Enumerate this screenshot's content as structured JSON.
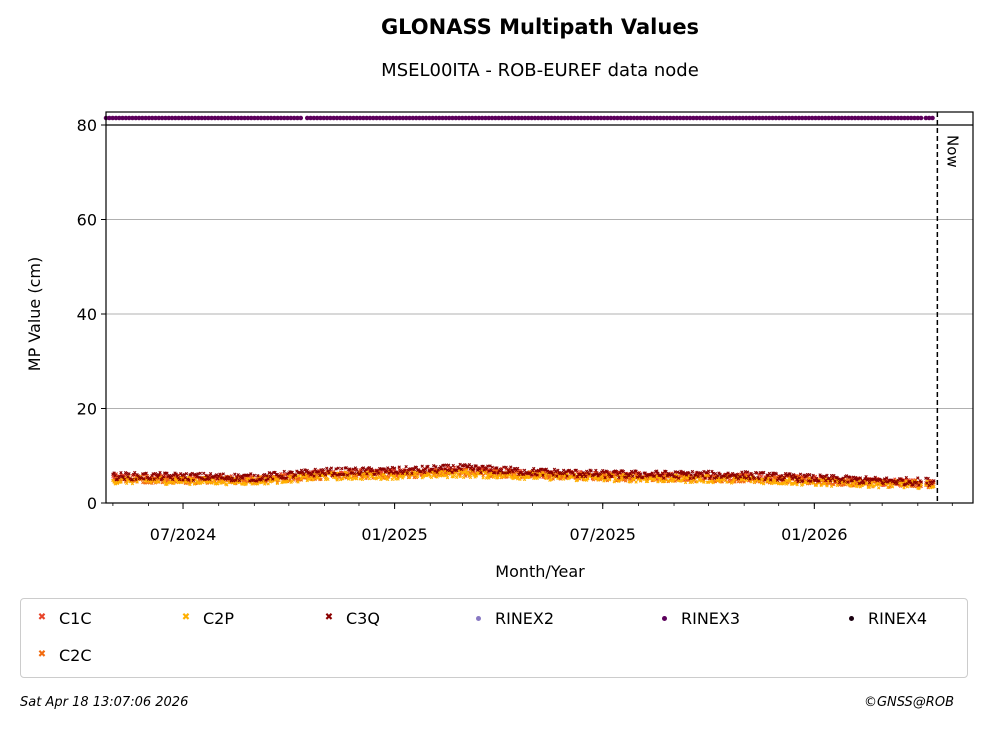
{
  "chart_data": {
    "type": "scatter",
    "title": "GLONASS Multipath Values",
    "subtitle": "MSEL00ITA - ROB-EUREF data node",
    "xlabel": "Month/Year",
    "ylabel": "MP Value (cm)",
    "ylim": [
      0,
      80
    ],
    "yticks": [
      "0",
      "20",
      "40",
      "60",
      "80"
    ],
    "xticks": [
      "07/2024",
      "01/2025",
      "07/2025",
      "01/2026"
    ],
    "xrange": [
      "2024-04-25",
      "2026-05-19"
    ],
    "now_label": "Now",
    "now_date": "2026-04-18",
    "grid": "horizontal",
    "series": [
      {
        "name": "C1C",
        "color": "#e8442a",
        "marker": "x",
        "points": [
          [
            "2024-05-01",
            5.4
          ],
          [
            "2024-07-01",
            5.2
          ],
          [
            "2024-09-01",
            5.0
          ],
          [
            "2024-11-01",
            6.2
          ],
          [
            "2025-01-01",
            6.4
          ],
          [
            "2025-03-01",
            6.9
          ],
          [
            "2025-05-01",
            6.2
          ],
          [
            "2025-07-01",
            5.8
          ],
          [
            "2025-09-01",
            5.6
          ],
          [
            "2025-11-01",
            5.5
          ],
          [
            "2026-01-01",
            4.9
          ],
          [
            "2026-03-01",
            4.4
          ],
          [
            "2026-04-15",
            4.2
          ]
        ]
      },
      {
        "name": "C2C",
        "color": "#f26b0f",
        "marker": "x",
        "points": [
          [
            "2024-05-01",
            5.0
          ],
          [
            "2024-07-01",
            4.9
          ],
          [
            "2024-09-01",
            4.8
          ],
          [
            "2024-11-01",
            5.8
          ],
          [
            "2025-01-01",
            6.0
          ],
          [
            "2025-03-01",
            6.5
          ],
          [
            "2025-05-01",
            5.9
          ],
          [
            "2025-07-01",
            5.5
          ],
          [
            "2025-09-01",
            5.3
          ],
          [
            "2025-11-01",
            5.2
          ],
          [
            "2026-01-01",
            4.6
          ],
          [
            "2026-03-01",
            4.1
          ],
          [
            "2026-04-15",
            3.9
          ]
        ]
      },
      {
        "name": "C2P",
        "color": "#ffb000",
        "marker": "x",
        "points": [
          [
            "2024-05-01",
            4.8
          ],
          [
            "2024-07-01",
            4.7
          ],
          [
            "2024-09-01",
            4.6
          ],
          [
            "2024-11-01",
            5.6
          ],
          [
            "2025-01-01",
            5.8
          ],
          [
            "2025-03-01",
            6.2
          ],
          [
            "2025-05-01",
            5.7
          ],
          [
            "2025-07-01",
            5.3
          ],
          [
            "2025-09-01",
            5.1
          ],
          [
            "2025-11-01",
            5.0
          ],
          [
            "2026-01-01",
            4.4
          ],
          [
            "2026-03-01",
            4.0
          ],
          [
            "2026-04-15",
            3.8
          ]
        ]
      },
      {
        "name": "C3Q",
        "color": "#8b0000",
        "marker": "x",
        "points": [
          [
            "2024-05-01",
            5.7
          ],
          [
            "2024-07-01",
            5.6
          ],
          [
            "2024-09-01",
            5.4
          ],
          [
            "2024-11-01",
            6.6
          ],
          [
            "2025-01-01",
            6.8
          ],
          [
            "2025-03-01",
            7.4
          ],
          [
            "2025-05-01",
            6.6
          ],
          [
            "2025-07-01",
            6.1
          ],
          [
            "2025-09-01",
            6.0
          ],
          [
            "2025-11-01",
            5.9
          ],
          [
            "2026-01-01",
            5.2
          ],
          [
            "2026-03-01",
            4.7
          ],
          [
            "2026-04-15",
            4.5
          ]
        ]
      },
      {
        "name": "RINEX2",
        "color": "#8878c3",
        "marker": "dot",
        "points": []
      },
      {
        "name": "RINEX3",
        "color": "#5c005c",
        "marker": "dot",
        "segments": [
          [
            "2024-04-25",
            "2024-10-14"
          ],
          [
            "2024-10-17",
            "2026-04-04"
          ],
          [
            "2026-04-08",
            "2026-04-15"
          ]
        ]
      },
      {
        "name": "RINEX4",
        "color": "#1a0010",
        "marker": "dot",
        "points": []
      }
    ],
    "legend_placement": "bottom"
  },
  "footer": {
    "timestamp": "Sat Apr 18 13:07:06 2026",
    "credit": "©GNSS@ROB"
  }
}
